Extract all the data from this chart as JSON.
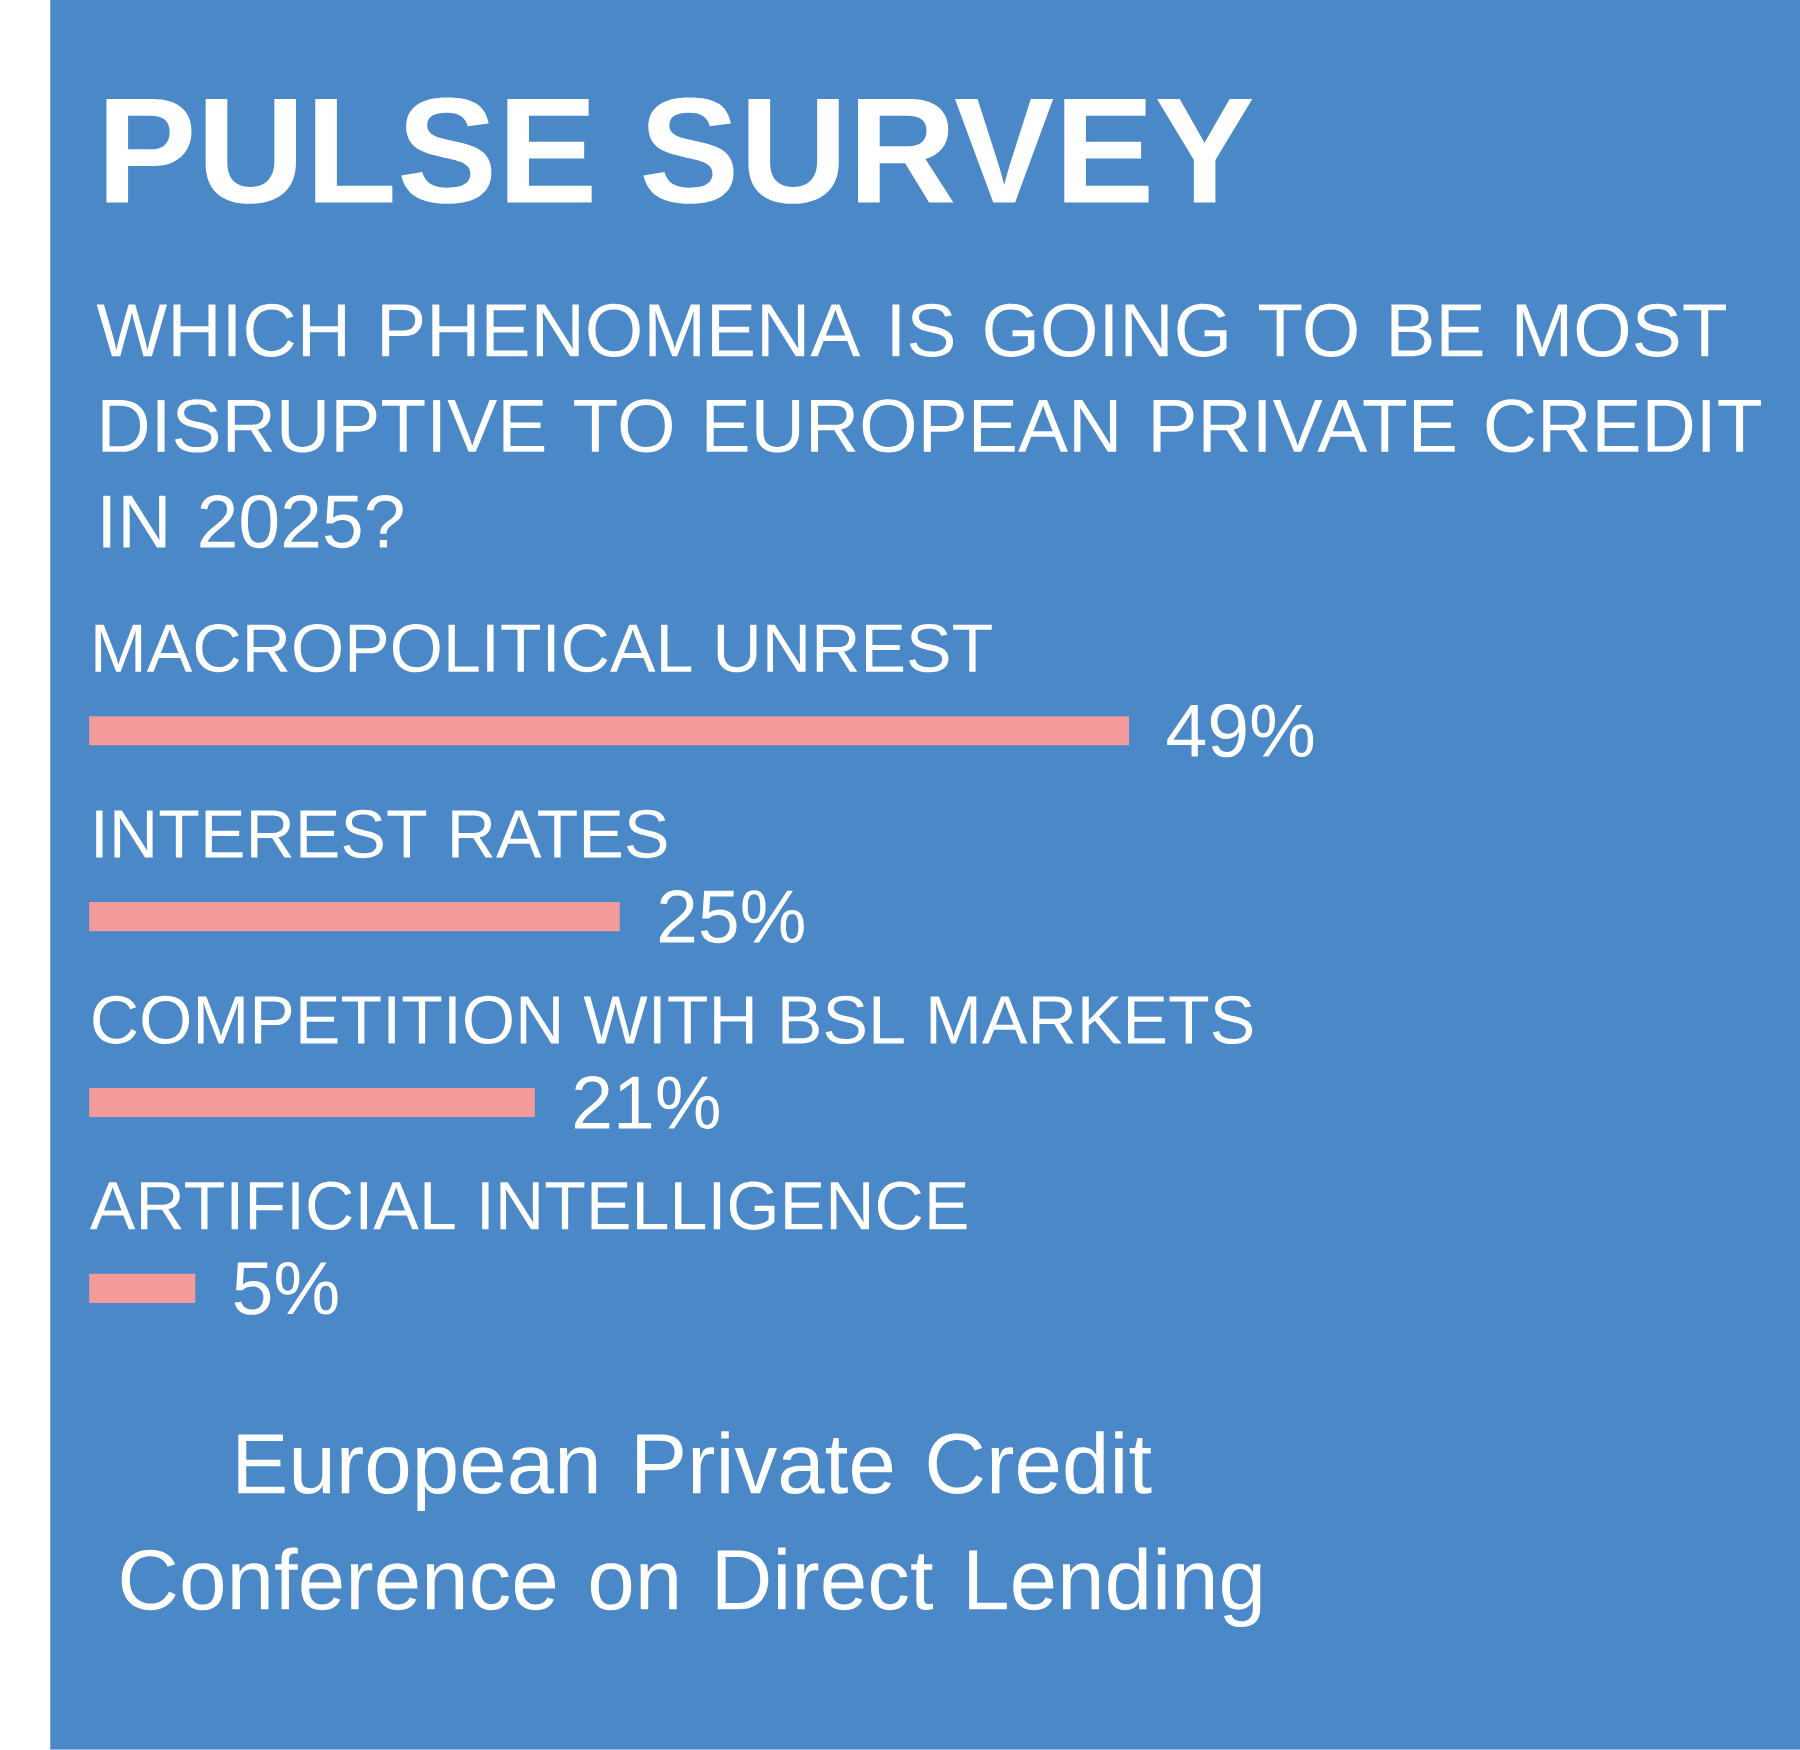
{
  "chart_data": {
    "type": "bar",
    "orientation": "horizontal",
    "title": "PULSE SURVEY",
    "subtitle": "WHICH PHENOMENA IS GOING TO BE MOST DISRUPTIVE TO EUROPEAN PRIVATE CREDIT IN 2025?",
    "categories": [
      "MACROPOLITICAL UNREST",
      "INTEREST RATES",
      "COMPETITION WITH BSL MARKETS",
      "ARTIFICIAL INTELLIGENCE"
    ],
    "values": [
      49,
      25,
      21,
      5
    ],
    "value_labels": [
      "49%",
      "25%",
      "21%",
      "5%"
    ],
    "color": "#f29b9a",
    "annotations": [
      "European Private Credit Conference on Direct Lending"
    ]
  }
}
